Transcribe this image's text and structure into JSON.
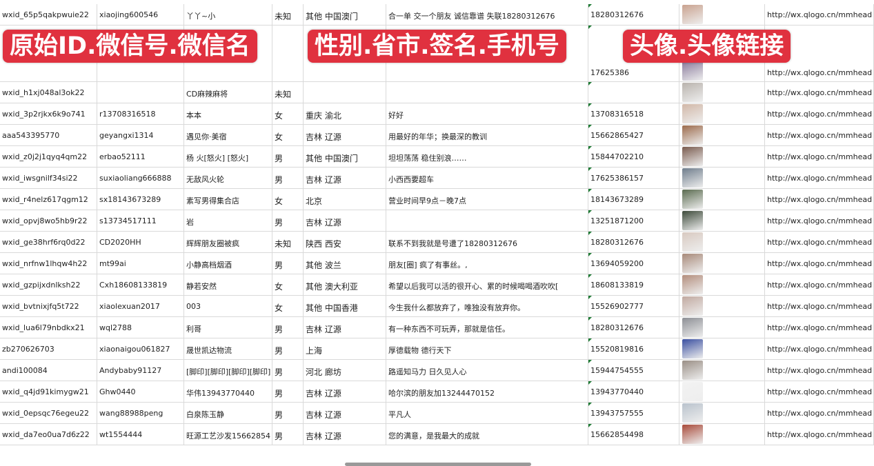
{
  "banners": [
    "原始ID.微信号.微信名",
    "性别.省市.签名.手机号",
    "头像.头像链接"
  ],
  "colors": {
    "banner": "#e0313f",
    "grid": "#d9d9d9",
    "comment_marker": "#1e7b34"
  },
  "rows": [
    [
      "wxid_65p5qakpwuie22",
      "xiaojing600546",
      "丫丫~小",
      "未知",
      "其他 中国澳门",
      "合一单 交一个朋友 诚信靠谱 失联18280312676",
      "18280312676",
      "http://wx.qlogo.cn/mmhead"
    ],
    [
      "",
      "",
      "",
      "",
      "",
      "",
      "17625386",
      "http://wx.qlogo.cn/mmhead"
    ],
    [
      "wxid_h1xj048al3ok22",
      "",
      "CD麻辣麻将",
      "未知",
      "",
      "",
      "",
      "http://wx.qlogo.cn/mmhead"
    ],
    [
      "wxid_3p2rjkx6k9o741",
      "r13708316518",
      "本本",
      "女",
      "重庆 渝北",
      "好好",
      "13708316518",
      "http://wx.qlogo.cn/mmhead"
    ],
    [
      "aaa543395770",
      "geyangxi1314",
      "遇见你·美宿",
      "女",
      "吉林 辽源",
      "用最好的年华；换最深的教训",
      "15662865427",
      "http://wx.qlogo.cn/mmhead"
    ],
    [
      "wxid_z0j2j1qyq4qm22",
      "erbao52111",
      "杨 火[怒火] [怒火]",
      "男",
      "其他 中国澳门",
      "坦坦荡荡 稳住别浪……",
      "15844702210",
      "http://wx.qlogo.cn/mmhead"
    ],
    [
      "wxid_iwsgnilf34si22",
      "suxiaoliang666888",
      "无敌风火轮",
      "男",
      "吉林 辽源",
      "小西西要超车",
      "17625386157",
      "http://wx.qlogo.cn/mmhead"
    ],
    [
      "wxid_r4nelz617qgm12",
      "sx18143673289",
      "素写男得集合店",
      "女",
      "北京",
      "营业时间早9点－晚7点",
      "18143673289",
      "http://wx.qlogo.cn/mmhead"
    ],
    [
      "wxid_opvj8wo5hb9r22",
      "s13734517111",
      "岩",
      "男",
      "吉林 辽源",
      "",
      "13251871200",
      "http://wx.qlogo.cn/mmhead"
    ],
    [
      "wxid_ge38hrf6rq0d22",
      "CD2020HH",
      "辉辉朋友圈被疯",
      "未知",
      "陕西 西安",
      "联系不到我就是号遭了18280312676",
      "18280312676",
      "http://wx.qlogo.cn/mmhead"
    ],
    [
      "wxid_nrfnw1lhqw4h22",
      "mt99ai",
      "小静高档烟酒",
      "男",
      "其他 波兰",
      "朋友[圈] 疯了有事丝。,",
      "13694059200",
      "http://wx.qlogo.cn/mmhead"
    ],
    [
      "wxid_gzpijxdnlksh22",
      "Cxh18608133819",
      "静若安然",
      "女",
      "其他 澳大利亚",
      "希望以后我可以活的很开心、累的时候喝喝酒吹吹[",
      "18608133819",
      "http://wx.qlogo.cn/mmhead"
    ],
    [
      "wxid_bvtnixjfq5t722",
      "xiaolexuan2017",
      "003",
      "女",
      "其他 中国香港",
      "今生我什么都放弃了，唯独没有放弃你。",
      "15526902777",
      "http://wx.qlogo.cn/mmhead"
    ],
    [
      "wxid_lua6l79nbdkx21",
      "wql2788",
      "利哥",
      "男",
      "吉林 辽源",
      "有一种东西不可玩弄，那就是信任。",
      "18280312676",
      "http://wx.qlogo.cn/mmhead"
    ],
    [
      "zb270626703",
      "xiaonaigou061827",
      "晟世凯达物流",
      "男",
      "上海",
      "厚德载物 德行天下",
      "15520819816",
      "http://wx.qlogo.cn/mmhead"
    ],
    [
      "andi100084",
      "Andybaby91127",
      "[脚印][脚印][脚印][脚印]",
      "男",
      "河北 廊坊",
      "路遥知马力 日久见人心",
      "15944754555",
      "http://wx.qlogo.cn/mmhead"
    ],
    [
      "wxid_q4jd91kimygw21",
      "Ghw0440",
      "华伟13943770440",
      "男",
      "吉林 辽源",
      "哈尔滨的朋友加13244470152",
      "13943770440",
      "http://wx.qlogo.cn/mmhead"
    ],
    [
      "wxid_0epsqc76egeu22",
      "wang88988peng",
      "白泉陈玉静",
      "男",
      "吉林 辽源",
      "平凡人",
      "13943757555",
      "http://wx.qlogo.cn/mmhead"
    ],
    [
      "wxid_da7eo0ua7d6z22",
      "wt1554444",
      "旺源工艺沙发15662854",
      "男",
      "吉林 辽源",
      "您的满意，是我最大的成就",
      "15662854498",
      "http://wx.qlogo.cn/mmhead"
    ]
  ]
}
